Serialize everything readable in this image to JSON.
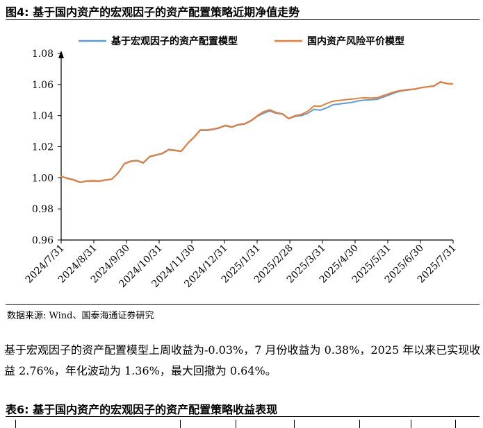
{
  "figure": {
    "title": "图4:  基于国内资产的宏观因子的资产配置策略近期净值走势",
    "source": "数据来源:  Wind、国泰海通证券研究"
  },
  "paragraph": "基于宏观因子的资产配置模型上周收益为-0.03%，7 月份收益为 0.38%，2025 年以来已实现收益 2.76%，年化波动为 1.36%，最大回撤为 0.64%。",
  "table": {
    "title": "表6:  基于国内资产的宏观因子的资产配置策略收益表现"
  },
  "colors": {
    "series_1": "#5B9BD5",
    "series_2": "#ED7D31"
  },
  "chart_data": {
    "type": "line",
    "ylim": [
      0.96,
      1.08
    ],
    "y_ticks": [
      "0.96",
      "0.98",
      "1.00",
      "1.02",
      "1.04",
      "1.06",
      "1.08"
    ],
    "x_tick_labels": [
      "2024/7/31",
      "2024/8/31",
      "2024/9/30",
      "2024/10/31",
      "2024/11/30",
      "2024/12/31",
      "2025/1/31",
      "2025/2/28",
      "2025/3/31",
      "2025/4/30",
      "2025/5/31",
      "2025/6/30",
      "2025/7/31"
    ],
    "legend_position": "top",
    "grid": false,
    "series": [
      {
        "name": "基于宏观因子的资产配置模型",
        "color": "#5B9BD5",
        "values": [
          1.001,
          0.9995,
          0.9985,
          0.997,
          0.9978,
          0.998,
          0.9978,
          0.9985,
          0.999,
          1.003,
          1.009,
          1.0105,
          1.011,
          1.0095,
          1.0135,
          1.0145,
          1.0155,
          1.018,
          1.0175,
          1.017,
          1.022,
          1.026,
          1.0305,
          1.0305,
          1.031,
          1.032,
          1.0335,
          1.0325,
          1.034,
          1.0345,
          1.0365,
          1.0395,
          1.0415,
          1.043,
          1.0415,
          1.041,
          1.038,
          1.0395,
          1.04,
          1.0415,
          1.044,
          1.0435,
          1.045,
          1.047,
          1.0475,
          1.048,
          1.0485,
          1.0495,
          1.05,
          1.0502,
          1.0505,
          1.052,
          1.0535,
          1.055,
          1.056,
          1.0565,
          1.057,
          1.058,
          1.0585,
          1.059,
          1.0615,
          1.0605,
          1.0605
        ]
      },
      {
        "name": "国内资产风险平价模型",
        "color": "#ED7D31",
        "values": [
          1.001,
          0.9998,
          0.9988,
          0.9972,
          0.998,
          0.9982,
          0.998,
          0.9987,
          0.9992,
          1.0032,
          1.0092,
          1.0108,
          1.0112,
          1.0098,
          1.0138,
          1.0148,
          1.0158,
          1.0183,
          1.0178,
          1.0172,
          1.0222,
          1.0262,
          1.0308,
          1.0308,
          1.0313,
          1.0323,
          1.0338,
          1.0328,
          1.0343,
          1.0348,
          1.0368,
          1.0398,
          1.0425,
          1.0438,
          1.042,
          1.0412,
          1.0382,
          1.04,
          1.0408,
          1.0428,
          1.0462,
          1.046,
          1.0478,
          1.0493,
          1.0498,
          1.0503,
          1.0506,
          1.0512,
          1.0515,
          1.0513,
          1.0515,
          1.053,
          1.0543,
          1.0556,
          1.0563,
          1.0568,
          1.0572,
          1.0581,
          1.0586,
          1.0592,
          1.0618,
          1.0607,
          1.0603
        ]
      }
    ]
  }
}
